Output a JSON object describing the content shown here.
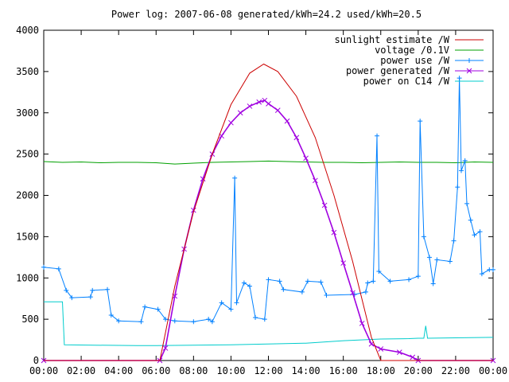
{
  "chart_data": {
    "type": "line",
    "title": "Power log: 2007-06-08 generated/kWh=24.2 used/kWh=20.5",
    "xlabel": "",
    "ylabel": "",
    "xlim": [
      0,
      24
    ],
    "ylim": [
      0,
      4000
    ],
    "x_ticks": [
      "00:00",
      "02:00",
      "04:00",
      "06:00",
      "08:00",
      "10:00",
      "12:00",
      "14:00",
      "16:00",
      "18:00",
      "20:00",
      "22:00",
      "00:00"
    ],
    "y_ticks": [
      0,
      500,
      1000,
      1500,
      2000,
      2500,
      3000,
      3500,
      4000
    ],
    "legend_position": "top-right",
    "grid": false,
    "series": [
      {
        "name": "sunlight estimate /W",
        "color": "#cc0000",
        "marker": "none",
        "points": [
          [
            0,
            0
          ],
          [
            6.2,
            0
          ],
          [
            7,
            900
          ],
          [
            8,
            1800
          ],
          [
            9,
            2500
          ],
          [
            10,
            3100
          ],
          [
            11,
            3480
          ],
          [
            11.75,
            3590
          ],
          [
            12.5,
            3500
          ],
          [
            13.5,
            3200
          ],
          [
            14.5,
            2700
          ],
          [
            15.5,
            2000
          ],
          [
            16.5,
            1200
          ],
          [
            17.5,
            280
          ],
          [
            18,
            0
          ],
          [
            24,
            0
          ]
        ]
      },
      {
        "name": "voltage /0.1V",
        "color": "#00a000",
        "marker": "none",
        "points": [
          [
            0,
            2410
          ],
          [
            1,
            2400
          ],
          [
            2,
            2405
          ],
          [
            3,
            2395
          ],
          [
            4,
            2400
          ],
          [
            5,
            2400
          ],
          [
            6,
            2395
          ],
          [
            7,
            2380
          ],
          [
            8,
            2390
          ],
          [
            9,
            2400
          ],
          [
            10,
            2405
          ],
          [
            11,
            2410
          ],
          [
            12,
            2415
          ],
          [
            13,
            2410
          ],
          [
            14,
            2405
          ],
          [
            15,
            2400
          ],
          [
            16,
            2400
          ],
          [
            17,
            2395
          ],
          [
            18,
            2400
          ],
          [
            19,
            2405
          ],
          [
            20,
            2400
          ],
          [
            21,
            2400
          ],
          [
            22,
            2395
          ],
          [
            23,
            2405
          ],
          [
            24,
            2400
          ]
        ]
      },
      {
        "name": "power use /W",
        "color": "#0080ff",
        "marker": "plus",
        "points": [
          [
            0,
            1130
          ],
          [
            0.8,
            1110
          ],
          [
            1.2,
            850
          ],
          [
            1.5,
            760
          ],
          [
            2.5,
            770
          ],
          [
            2.6,
            850
          ],
          [
            3.4,
            860
          ],
          [
            3.6,
            550
          ],
          [
            4,
            480
          ],
          [
            5.2,
            470
          ],
          [
            5.4,
            650
          ],
          [
            6.1,
            620
          ],
          [
            6.5,
            500
          ],
          [
            7,
            480
          ],
          [
            8,
            470
          ],
          [
            8.8,
            500
          ],
          [
            9,
            470
          ],
          [
            9.5,
            700
          ],
          [
            10,
            620
          ],
          [
            10.2,
            2210
          ],
          [
            10.3,
            700
          ],
          [
            10.7,
            940
          ],
          [
            11,
            900
          ],
          [
            11.3,
            520
          ],
          [
            11.8,
            500
          ],
          [
            12,
            980
          ],
          [
            12.6,
            960
          ],
          [
            12.8,
            860
          ],
          [
            13.8,
            830
          ],
          [
            14.1,
            960
          ],
          [
            14.8,
            950
          ],
          [
            15.1,
            790
          ],
          [
            16.6,
            800
          ],
          [
            17.2,
            830
          ],
          [
            17.3,
            940
          ],
          [
            17.6,
            960
          ],
          [
            17.8,
            2720
          ],
          [
            17.9,
            1080
          ],
          [
            18.5,
            960
          ],
          [
            19.5,
            980
          ],
          [
            20,
            1020
          ],
          [
            20.1,
            2900
          ],
          [
            20.3,
            1500
          ],
          [
            20.6,
            1250
          ],
          [
            20.8,
            930
          ],
          [
            21,
            1220
          ],
          [
            21.7,
            1200
          ],
          [
            21.9,
            1450
          ],
          [
            22.1,
            2100
          ],
          [
            22.2,
            3420
          ],
          [
            22.3,
            2300
          ],
          [
            22.5,
            2420
          ],
          [
            22.6,
            1900
          ],
          [
            22.8,
            1700
          ],
          [
            23,
            1520
          ],
          [
            23.3,
            1560
          ],
          [
            23.4,
            1050
          ],
          [
            23.8,
            1100
          ],
          [
            24,
            1100
          ]
        ]
      },
      {
        "name": "power generated /W",
        "color": "#a000e0",
        "marker": "cross",
        "points": [
          [
            0,
            0
          ],
          [
            6.2,
            0
          ],
          [
            6.5,
            150
          ],
          [
            7,
            780
          ],
          [
            7.5,
            1350
          ],
          [
            8,
            1820
          ],
          [
            8.5,
            2200
          ],
          [
            9,
            2500
          ],
          [
            9.5,
            2720
          ],
          [
            10,
            2880
          ],
          [
            10.5,
            3000
          ],
          [
            11,
            3080
          ],
          [
            11.5,
            3130
          ],
          [
            11.8,
            3150
          ],
          [
            12,
            3110
          ],
          [
            12.5,
            3030
          ],
          [
            13,
            2900
          ],
          [
            13.5,
            2700
          ],
          [
            14,
            2450
          ],
          [
            14.5,
            2180
          ],
          [
            15,
            1880
          ],
          [
            15.5,
            1550
          ],
          [
            16,
            1180
          ],
          [
            16.5,
            820
          ],
          [
            17,
            450
          ],
          [
            17.5,
            200
          ],
          [
            18,
            140
          ],
          [
            19,
            100
          ],
          [
            19.7,
            40
          ],
          [
            20,
            0
          ],
          [
            24,
            0
          ]
        ]
      },
      {
        "name": "power on C14 /W",
        "color": "#00cccc",
        "marker": "none",
        "points": [
          [
            0,
            710
          ],
          [
            1,
            710
          ],
          [
            1.1,
            190
          ],
          [
            5,
            180
          ],
          [
            6,
            180
          ],
          [
            10,
            190
          ],
          [
            14,
            210
          ],
          [
            16,
            240
          ],
          [
            18,
            260
          ],
          [
            19.5,
            265
          ],
          [
            20,
            270
          ],
          [
            20.3,
            270
          ],
          [
            20.4,
            420
          ],
          [
            20.5,
            270
          ],
          [
            22,
            275
          ],
          [
            24,
            280
          ]
        ]
      }
    ]
  }
}
